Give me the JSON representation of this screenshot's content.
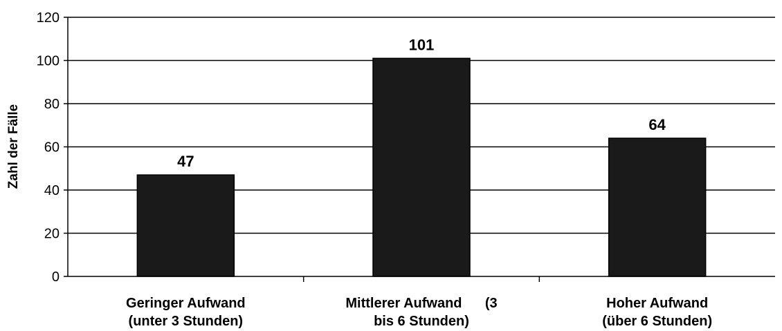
{
  "chart_data": {
    "type": "bar",
    "categories": [
      [
        "Geringer Aufwand",
        "(unter 3 Stunden)"
      ],
      [
        "Mittlerer Aufwand      (3",
        "bis 6 Stunden)"
      ],
      [
        "Hoher Aufwand",
        "(über 6 Stunden)"
      ]
    ],
    "values": [
      47,
      101,
      64
    ],
    "data_labels": [
      "47",
      "101",
      "64"
    ],
    "ylabel": "Zahl der Fälle",
    "ylim": [
      0,
      120
    ],
    "yticks": [
      "0",
      "20",
      "40",
      "60",
      "80",
      "100",
      "120"
    ],
    "grid": true,
    "bar_color": "#1a1a1a"
  }
}
